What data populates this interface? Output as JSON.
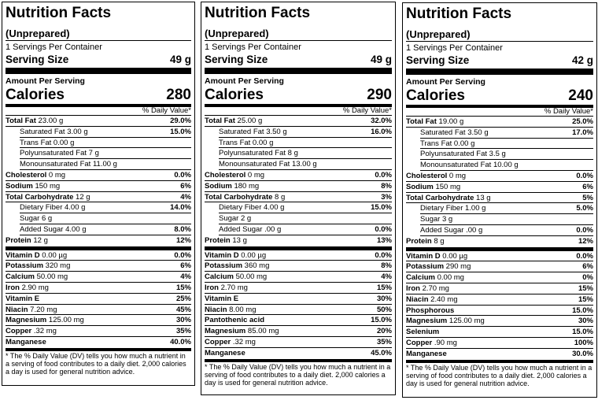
{
  "labels": [
    {
      "title": "Nutrition Facts",
      "subtitle": "(Unprepared)",
      "servings": "1 Servings Per Container",
      "serving_size_label": "Serving Size",
      "serving_size_value": "49 g",
      "amount_label": "Amount Per Serving",
      "calories_label": "Calories",
      "calories_value": "280",
      "dv_header": "% Daily Value*",
      "macro_rows": [
        {
          "name": "Total Fat",
          "bold": true,
          "amount": " 23.00 g",
          "dv": "29.0%",
          "indent": false
        },
        {
          "name": "Saturated Fat",
          "bold": false,
          "amount": " 3.00 g",
          "dv": "15.0%",
          "indent": true
        },
        {
          "name": "Trans Fat",
          "bold": false,
          "amount": " 0.00 g",
          "dv": "",
          "indent": true
        },
        {
          "name": "Polyunsaturated Fat",
          "bold": false,
          "amount": " 7 g",
          "dv": "",
          "indent": true
        },
        {
          "name": "Monounsaturated Fat",
          "bold": false,
          "amount": " 11.00 g",
          "dv": "",
          "indent": true
        },
        {
          "name": "Cholesterol",
          "bold": true,
          "amount": " 0 mg",
          "dv": "0.0%",
          "indent": false
        },
        {
          "name": "Sodium",
          "bold": true,
          "amount": " 150 mg",
          "dv": "6%",
          "indent": false
        },
        {
          "name": "Total Carbohydrate",
          "bold": true,
          "amount": " 12 g",
          "dv": "4%",
          "indent": false
        },
        {
          "name": "Dietary Fiber",
          "bold": false,
          "amount": " 4.00 g",
          "dv": "14.0%",
          "indent": true
        },
        {
          "name": "Sugar",
          "bold": false,
          "amount": " 6 g",
          "dv": "",
          "indent": true
        },
        {
          "name": "Added Sugar",
          "bold": false,
          "amount": " 4.00 g",
          "dv": "8.0%",
          "indent": true
        },
        {
          "name": "Protein",
          "bold": true,
          "amount": " 12 g",
          "dv": "12%",
          "indent": false
        }
      ],
      "micro_rows": [
        {
          "name": "Vitamin D",
          "bold": true,
          "amount": " 0.00 µg",
          "dv": "0.0%"
        },
        {
          "name": "Potassium",
          "bold": true,
          "amount": " 320 mg",
          "dv": "6%"
        },
        {
          "name": "Calcium",
          "bold": true,
          "amount": " 50.00 mg",
          "dv": "4%"
        },
        {
          "name": "Iron",
          "bold": true,
          "amount": " 2.90 mg",
          "dv": "15%"
        },
        {
          "name": "Vitamin E",
          "bold": true,
          "amount": "",
          "dv": "25%"
        },
        {
          "name": "Niacin",
          "bold": true,
          "amount": " 7.20 mg",
          "dv": "45%"
        },
        {
          "name": "Magnesium",
          "bold": true,
          "amount": " 125.00 mg",
          "dv": "30%"
        },
        {
          "name": "Copper",
          "bold": true,
          "amount": " .32 mg",
          "dv": "35%"
        },
        {
          "name": "Manganese",
          "bold": true,
          "amount": "",
          "dv": "40.0%"
        }
      ],
      "footnote": "* The % Daily Value (DV) tells you how much a nutrient in a serving of food contributes to a daily diet. 2,000 calories a day is used for general nutrition advice."
    },
    {
      "title": "Nutrition Facts",
      "subtitle": "(Unprepared)",
      "servings": "1 Servings Per Container",
      "serving_size_label": "Serving Size",
      "serving_size_value": "49 g",
      "amount_label": "Amount Per Serving",
      "calories_label": "Calories",
      "calories_value": "290",
      "dv_header": "% Daily Value*",
      "macro_rows": [
        {
          "name": "Total Fat",
          "bold": true,
          "amount": " 25.00 g",
          "dv": "32.0%",
          "indent": false
        },
        {
          "name": "Saturated Fat",
          "bold": false,
          "amount": " 3.50 g",
          "dv": "16.0%",
          "indent": true
        },
        {
          "name": "Trans Fat",
          "bold": false,
          "amount": " 0.00 g",
          "dv": "",
          "indent": true
        },
        {
          "name": "Polyunsaturated Fat",
          "bold": false,
          "amount": " 8 g",
          "dv": "",
          "indent": true
        },
        {
          "name": "Monounsaturated Fat",
          "bold": false,
          "amount": " 13.00 g",
          "dv": "",
          "indent": true
        },
        {
          "name": "Cholesterol",
          "bold": true,
          "amount": " 0 mg",
          "dv": "0.0%",
          "indent": false
        },
        {
          "name": "Sodium",
          "bold": true,
          "amount": " 180 mg",
          "dv": "8%",
          "indent": false
        },
        {
          "name": "Total Carbohydrate",
          "bold": true,
          "amount": " 8 g",
          "dv": "3%",
          "indent": false
        },
        {
          "name": "Dietary Fiber",
          "bold": false,
          "amount": " 4.00 g",
          "dv": "15.0%",
          "indent": true
        },
        {
          "name": "Sugar",
          "bold": false,
          "amount": " 2 g",
          "dv": "",
          "indent": true
        },
        {
          "name": "Added Sugar",
          "bold": false,
          "amount": " .00 g",
          "dv": "0.0%",
          "indent": true
        },
        {
          "name": "Protein",
          "bold": true,
          "amount": " 13 g",
          "dv": "13%",
          "indent": false
        }
      ],
      "micro_rows": [
        {
          "name": "Vitamin D",
          "bold": true,
          "amount": " 0.00 µg",
          "dv": "0.0%"
        },
        {
          "name": "Potassium",
          "bold": true,
          "amount": " 360 mg",
          "dv": "8%"
        },
        {
          "name": "Calcium",
          "bold": true,
          "amount": " 50.00 mg",
          "dv": "4%"
        },
        {
          "name": "Iron",
          "bold": true,
          "amount": " 2.70 mg",
          "dv": "15%"
        },
        {
          "name": "Vitamin E",
          "bold": true,
          "amount": "",
          "dv": "30%"
        },
        {
          "name": "Niacin",
          "bold": true,
          "amount": " 8.00 mg",
          "dv": "50%"
        },
        {
          "name": "Pantothenic acid",
          "bold": true,
          "amount": "",
          "dv": "15.0%"
        },
        {
          "name": "Magnesium",
          "bold": true,
          "amount": " 85.00 mg",
          "dv": "20%"
        },
        {
          "name": "Copper",
          "bold": true,
          "amount": " .32 mg",
          "dv": "35%"
        },
        {
          "name": "Manganese",
          "bold": true,
          "amount": "",
          "dv": "45.0%"
        }
      ],
      "footnote": "* The % Daily Value (DV) tells you how much a nutrient in a serving of food contributes to a daily diet. 2,000 calories a day is used for general nutrition advice."
    },
    {
      "title": "Nutrition Facts",
      "subtitle": "(Unprepared)",
      "servings": "1 Servings Per Container",
      "serving_size_label": "Serving Size",
      "serving_size_value": "42 g",
      "amount_label": "Amount Per Serving",
      "calories_label": "Calories",
      "calories_value": "240",
      "dv_header": "% Daily Value*",
      "macro_rows": [
        {
          "name": "Total Fat",
          "bold": true,
          "amount": " 19.00 g",
          "dv": "25.0%",
          "indent": false
        },
        {
          "name": "Saturated Fat",
          "bold": false,
          "amount": " 3.50 g",
          "dv": "17.0%",
          "indent": true
        },
        {
          "name": "Trans Fat",
          "bold": false,
          "amount": " 0.00 g",
          "dv": "",
          "indent": true
        },
        {
          "name": "Polyunsaturated Fat",
          "bold": false,
          "amount": " 3.5 g",
          "dv": "",
          "indent": true
        },
        {
          "name": "Monounsaturated Fat",
          "bold": false,
          "amount": " 10.00 g",
          "dv": "",
          "indent": true
        },
        {
          "name": "Cholesterol",
          "bold": true,
          "amount": " 0 mg",
          "dv": "0.0%",
          "indent": false
        },
        {
          "name": "Sodium",
          "bold": true,
          "amount": " 150 mg",
          "dv": "6%",
          "indent": false
        },
        {
          "name": "Total Carbohydrate",
          "bold": true,
          "amount": " 13 g",
          "dv": "5%",
          "indent": false
        },
        {
          "name": "Dietary Fiber",
          "bold": false,
          "amount": " 1.00 g",
          "dv": "5.0%",
          "indent": true
        },
        {
          "name": "Sugar",
          "bold": false,
          "amount": " 3 g",
          "dv": "",
          "indent": true
        },
        {
          "name": "Added Sugar",
          "bold": false,
          "amount": " .00 g",
          "dv": "0.0%",
          "indent": true
        },
        {
          "name": "Protein",
          "bold": true,
          "amount": " 8 g",
          "dv": "12%",
          "indent": false
        }
      ],
      "micro_rows": [
        {
          "name": "Vitamin D",
          "bold": true,
          "amount": " 0.00 µg",
          "dv": "0.0%"
        },
        {
          "name": "Potassium",
          "bold": true,
          "amount": " 290 mg",
          "dv": "6%"
        },
        {
          "name": "Calcium",
          "bold": true,
          "amount": " 0.00 mg",
          "dv": "0%"
        },
        {
          "name": "Iron",
          "bold": true,
          "amount": " 2.70 mg",
          "dv": "15%"
        },
        {
          "name": "Niacin",
          "bold": true,
          "amount": " 2.40 mg",
          "dv": "15%"
        },
        {
          "name": "Phosphorous",
          "bold": true,
          "amount": "",
          "dv": "15.0%"
        },
        {
          "name": "Magnesium",
          "bold": true,
          "amount": " 125.00 mg",
          "dv": "30%"
        },
        {
          "name": "Selenium",
          "bold": true,
          "amount": "",
          "dv": "15.0%"
        },
        {
          "name": "Copper",
          "bold": true,
          "amount": " .90 mg",
          "dv": "100%"
        },
        {
          "name": "Manganese",
          "bold": true,
          "amount": "",
          "dv": "30.0%"
        }
      ],
      "footnote": "* The % Daily Value (DV) tells you how much a nutrient in a serving of food contributes to a daily diet. 2,000 calories a day is used for general nutrition advice."
    }
  ]
}
